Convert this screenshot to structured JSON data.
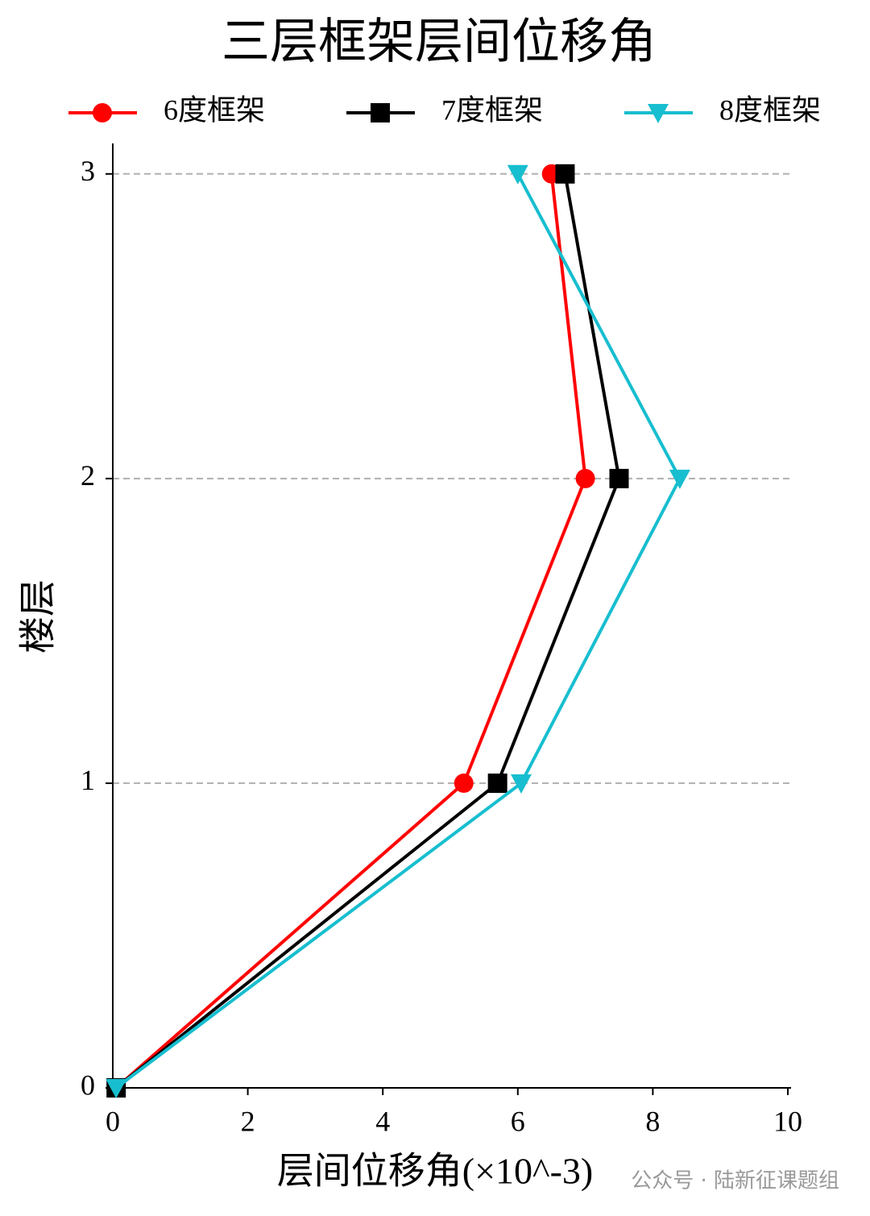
{
  "chart_data": {
    "type": "line",
    "title": "三层框架层间位移角",
    "xlabel": "层间位移角(×10^-3)",
    "ylabel": "楼层",
    "watermark": "公众号 · 陆新征课题组",
    "xlim": [
      0,
      10
    ],
    "xticks": [
      0,
      2,
      4,
      6,
      8,
      10
    ],
    "ylim": [
      0,
      3.1
    ],
    "yticks": [
      0,
      1,
      2,
      3
    ],
    "grid": "y",
    "legend": "top",
    "series": [
      {
        "name": "6度框架",
        "color": "#ff0000",
        "marker": "circle",
        "x": [
          0.05,
          5.2,
          7.0,
          6.5
        ],
        "values": [
          0,
          1,
          2,
          3
        ]
      },
      {
        "name": "7度框架",
        "color": "#000000",
        "marker": "square",
        "x": [
          0.05,
          5.7,
          7.5,
          6.7
        ],
        "values": [
          0,
          1,
          2,
          3
        ]
      },
      {
        "name": "8度框架",
        "color": "#17becf",
        "marker": "triangle-down",
        "x": [
          0.05,
          6.05,
          8.4,
          6.0
        ],
        "values": [
          0,
          1,
          2,
          3
        ]
      }
    ]
  }
}
